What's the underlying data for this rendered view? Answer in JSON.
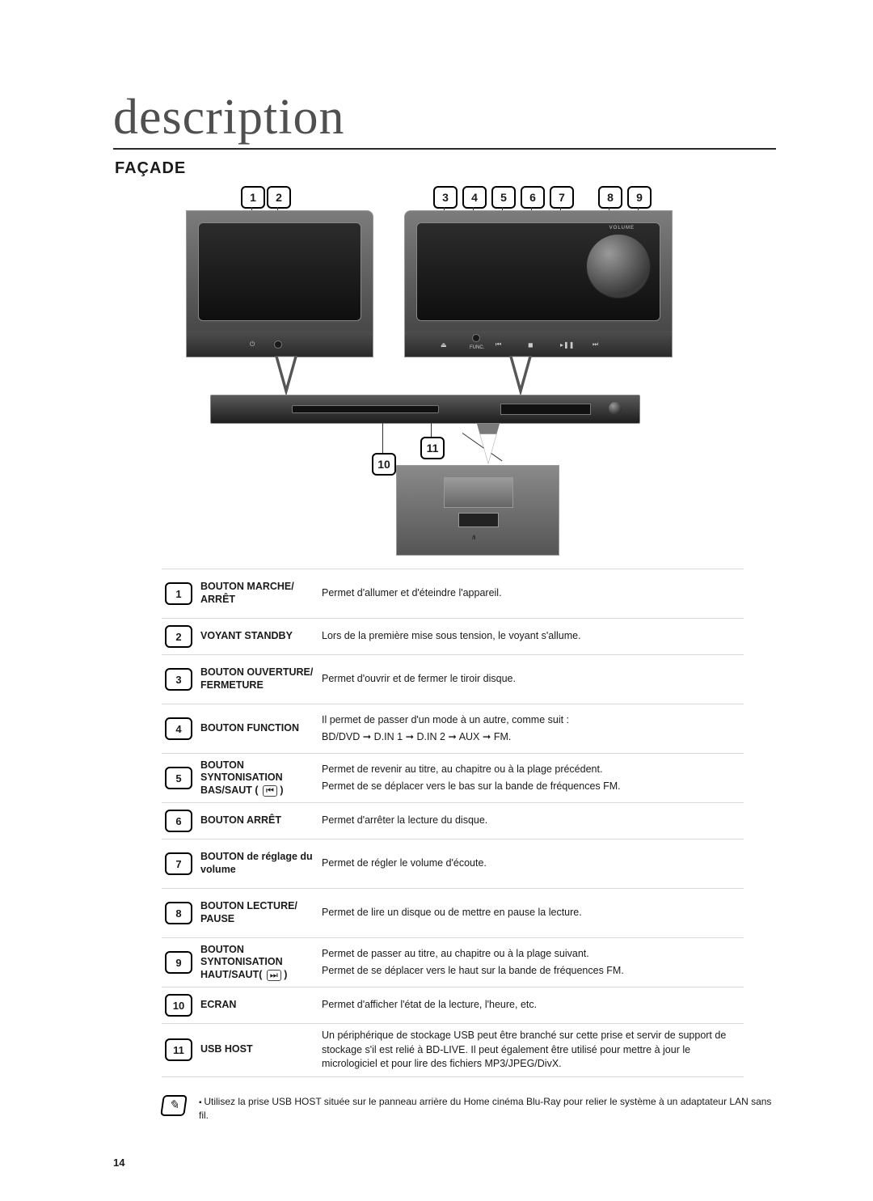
{
  "page_number": "14",
  "title": "description",
  "subtitle": "FAÇADE",
  "callouts_top": [
    "1",
    "2",
    "3",
    "4",
    "5",
    "6",
    "7",
    "8",
    "9"
  ],
  "callouts_mid": {
    "ten": "10",
    "eleven": "11"
  },
  "device_labels": {
    "volume": "VOLUME",
    "func": "FUNC."
  },
  "rows": [
    {
      "n": "1",
      "label": "BOUTON MARCHE/\nARRÊT",
      "desc": "Permet d'allumer et d'éteindre l'appareil."
    },
    {
      "n": "2",
      "label": "VOYANT STANDBY",
      "desc": "Lors de la première mise sous tension, le voyant s'allume."
    },
    {
      "n": "3",
      "label": "BOUTON OUVERTURE/\nFERMETURE",
      "desc": "Permet d'ouvrir et de fermer le tiroir disque."
    },
    {
      "n": "4",
      "label": "BOUTON FUNCTION",
      "desc": "Il permet de passer d'un mode à un autre, comme suit :",
      "desc2": "BD/DVD ➞ D.IN 1 ➞ D.IN 2 ➞ AUX ➞ FM."
    },
    {
      "n": "5",
      "label": "BOUTON SYNTONISATION\nBAS/SAUT ( ",
      "icon": "⏮",
      "label_tail": " )",
      "desc": "Permet de revenir au titre, au chapitre ou à la plage précédent.",
      "desc2": "Permet de se déplacer vers le bas sur la bande de fréquences FM."
    },
    {
      "n": "6",
      "label": "BOUTON ARRÊT",
      "desc": "Permet d'arrêter la lecture du disque."
    },
    {
      "n": "7",
      "label": "BOUTON de réglage du\nvolume",
      "desc": "Permet de régler le volume d'écoute."
    },
    {
      "n": "8",
      "label": "BOUTON LECTURE/\nPAUSE",
      "desc": "Permet de lire un disque ou de mettre en pause la lecture."
    },
    {
      "n": "9",
      "label": "BOUTON SYNTONISATION\nHAUT/SAUT( ",
      "icon": "⏭",
      "label_tail": " )",
      "desc": "Permet de passer au titre, au chapitre ou à la plage suivant.",
      "desc2": "Permet de se déplacer vers le haut sur la bande de fréquences FM."
    },
    {
      "n": "10",
      "label": "ECRAN",
      "desc": "Permet d'afficher l'état de la lecture, l'heure, etc."
    },
    {
      "n": "11",
      "label": "USB HOST",
      "desc": "Un périphérique de stockage USB peut être branché sur cette prise et servir de support de stockage s'il est relié à BD-LIVE. Il peut également être utilisé pour mettre à jour le micrologiciel et pour lire des fichiers MP3/JPEG/DivX."
    }
  ],
  "footnote": "Utilisez la prise USB HOST située sur le panneau arrière du Home cinéma Blu-Ray pour relier le système à un adaptateur LAN sans fil.",
  "colors": {
    "metal_top": "#7c7c7c",
    "metal_bot": "#3d3d3d",
    "glass_top": "#2c2c2c",
    "glass_bot": "#0f0f0f"
  }
}
